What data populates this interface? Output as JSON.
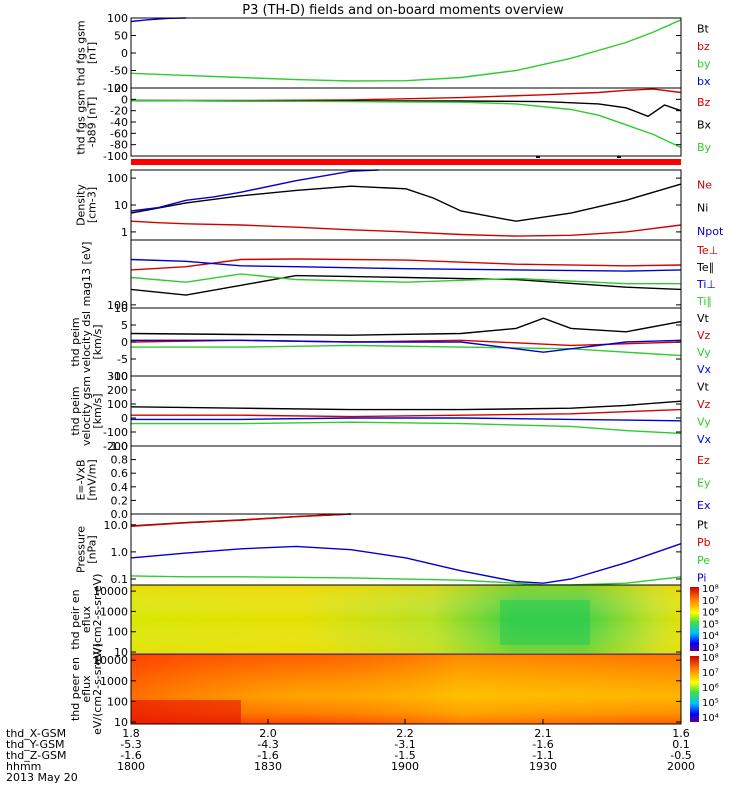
{
  "title": "P3 (TH-D) fields and on-board moments overview",
  "colors": {
    "black": "#000000",
    "red": "#d40000",
    "green": "#2ecc2e",
    "blue": "#0000d4"
  },
  "chart_data": [
    {
      "type": "line",
      "ylabel": "thd fgs gsm [nT]",
      "ylim": [
        -100,
        100
      ],
      "ticks": [
        100,
        50,
        0,
        -50,
        -100
      ],
      "tick_labels": [
        "100",
        "50",
        "0",
        "-50",
        "-100"
      ],
      "legend": [
        {
          "name": "Bt",
          "color": "black"
        },
        {
          "name": "bz",
          "color": "red"
        },
        {
          "name": "by",
          "color": "green"
        },
        {
          "name": "bx",
          "color": "blue"
        }
      ],
      "series": [
        {
          "name": "by",
          "color": "green",
          "x": [
            0,
            0.1,
            0.2,
            0.3,
            0.4,
            0.5,
            0.6,
            0.7,
            0.8,
            0.9,
            0.95,
            1.0
          ],
          "y": [
            -58,
            -64,
            -70,
            -76,
            -80,
            -79,
            -70,
            -50,
            -15,
            30,
            60,
            95
          ]
        },
        {
          "name": "bx",
          "color": "blue",
          "x": [
            0,
            0.03,
            0.07,
            0.1
          ],
          "y": [
            90,
            95,
            99,
            104
          ]
        }
      ]
    },
    {
      "type": "line",
      "ylabel": "thd fgs gsm -b89 [nT]",
      "ylim": [
        -100,
        20
      ],
      "ticks": [
        20,
        0,
        -20,
        -40,
        -60,
        -80,
        -100
      ],
      "tick_labels": [
        "20",
        "0",
        "-20",
        "-40",
        "-60",
        "-80",
        "-100"
      ],
      "legend": [
        {
          "name": "Bz",
          "color": "red"
        },
        {
          "name": "Bx",
          "color": "black"
        },
        {
          "name": "By",
          "color": "green"
        }
      ],
      "series": [
        {
          "name": "Bz",
          "color": "red",
          "x": [
            0,
            0.2,
            0.4,
            0.6,
            0.75,
            0.85,
            0.9,
            0.95,
            1.0
          ],
          "y": [
            -2,
            -2,
            -1,
            3,
            8,
            12,
            16,
            18,
            12
          ]
        },
        {
          "name": "Bx",
          "color": "black",
          "x": [
            0,
            0.2,
            0.4,
            0.6,
            0.75,
            0.85,
            0.9,
            0.94,
            0.97,
            1.0
          ],
          "y": [
            -2,
            -3,
            -3,
            -3,
            -4,
            -8,
            -15,
            -30,
            -10,
            -20
          ]
        },
        {
          "name": "By",
          "color": "green",
          "x": [
            0,
            0.2,
            0.4,
            0.6,
            0.7,
            0.8,
            0.85,
            0.9,
            0.95,
            1.0
          ],
          "y": [
            -2,
            -3,
            -4,
            -5,
            -8,
            -18,
            -28,
            -45,
            -62,
            -85
          ]
        }
      ]
    },
    {
      "type": "line",
      "ylabel": "Density [cm-3]",
      "yscale": "log",
      "ylim": [
        0.5,
        200
      ],
      "ticks": [
        100,
        10,
        1
      ],
      "tick_labels": [
        "100",
        "10",
        "1"
      ],
      "legend": [
        {
          "name": "Ne",
          "color": "red"
        },
        {
          "name": "Ni",
          "color": "black"
        },
        {
          "name": "Npot",
          "color": "blue"
        }
      ],
      "series": [
        {
          "name": "Ni",
          "color": "black",
          "x": [
            0,
            0.1,
            0.2,
            0.3,
            0.4,
            0.5,
            0.55,
            0.6,
            0.7,
            0.8,
            0.9,
            1.0
          ],
          "y": [
            5,
            12,
            22,
            35,
            50,
            40,
            18,
            6,
            2.5,
            5,
            15,
            60
          ]
        },
        {
          "name": "Npot",
          "color": "blue",
          "x": [
            0,
            0.05,
            0.1,
            0.15,
            0.2,
            0.3,
            0.4,
            0.45
          ],
          "y": [
            6,
            8,
            15,
            20,
            30,
            80,
            180,
            250
          ]
        },
        {
          "name": "Ne",
          "color": "red",
          "x": [
            0,
            0.05,
            0.1,
            0.2,
            0.3,
            0.4,
            0.5,
            0.6,
            0.7,
            0.8,
            0.9,
            1.0
          ],
          "y": [
            2.5,
            2.2,
            2.0,
            1.8,
            1.5,
            1.2,
            1.0,
            0.8,
            0.7,
            0.75,
            1.0,
            1.8
          ]
        }
      ]
    },
    {
      "type": "line",
      "ylabel": "mag13 [eV]",
      "yscale": "log",
      "ylim": [
        80,
        10000
      ],
      "ticks": [
        100
      ],
      "tick_labels": [
        "100"
      ],
      "legend": [
        {
          "name": "Te⊥",
          "color": "red"
        },
        {
          "name": "Te∥",
          "color": "black"
        },
        {
          "name": "Ti⊥",
          "color": "blue"
        },
        {
          "name": "Ti∥",
          "color": "green"
        }
      ],
      "series": [
        {
          "name": "Te⊥",
          "color": "red",
          "x": [
            0,
            0.1,
            0.2,
            0.3,
            0.5,
            0.7,
            0.9,
            1.0
          ],
          "y": [
            1200,
            1500,
            2500,
            2600,
            2400,
            1800,
            1600,
            1700
          ]
        },
        {
          "name": "Te∥",
          "color": "black",
          "x": [
            0,
            0.1,
            0.2,
            0.3,
            0.5,
            0.7,
            0.9,
            1.0
          ],
          "y": [
            300,
            200,
            400,
            800,
            700,
            600,
            350,
            300
          ]
        },
        {
          "name": "Ti⊥",
          "color": "blue",
          "x": [
            0,
            0.1,
            0.2,
            0.3,
            0.5,
            0.7,
            0.9,
            1.0
          ],
          "y": [
            2500,
            2200,
            1600,
            1500,
            1300,
            1200,
            1100,
            1200
          ]
        },
        {
          "name": "Ti∥",
          "color": "green",
          "x": [
            0,
            0.1,
            0.2,
            0.3,
            0.5,
            0.7,
            0.9,
            1.0
          ],
          "y": [
            700,
            500,
            900,
            600,
            500,
            650,
            450,
            450
          ]
        }
      ]
    },
    {
      "type": "line",
      "ylabel": "thd peim velocity dsl [km/s]",
      "ylim": [
        -10,
        10
      ],
      "ticks": [
        10,
        5,
        0,
        -5,
        -10
      ],
      "tick_labels": [
        "10",
        "5",
        "0",
        "-5",
        "-10"
      ],
      "legend": [
        {
          "name": "Vt",
          "color": "black"
        },
        {
          "name": "Vz",
          "color": "red"
        },
        {
          "name": "Vy",
          "color": "green"
        },
        {
          "name": "Vx",
          "color": "blue"
        }
      ],
      "series": [
        {
          "name": "Vt",
          "color": "black",
          "x": [
            0,
            0.2,
            0.4,
            0.6,
            0.7,
            0.75,
            0.8,
            0.9,
            1.0
          ],
          "y": [
            2.5,
            2.2,
            2.0,
            2.5,
            4,
            7,
            4,
            3,
            6
          ]
        },
        {
          "name": "Vz",
          "color": "red",
          "x": [
            0,
            0.2,
            0.4,
            0.6,
            0.8,
            1.0
          ],
          "y": [
            0,
            0.5,
            0,
            0.5,
            -1,
            0
          ]
        },
        {
          "name": "Vy",
          "color": "green",
          "x": [
            0,
            0.2,
            0.4,
            0.6,
            0.8,
            0.9,
            1.0
          ],
          "y": [
            -1.5,
            -1.5,
            -1,
            -1.5,
            -2,
            -3,
            -4
          ]
        },
        {
          "name": "Vx",
          "color": "blue",
          "x": [
            0,
            0.2,
            0.4,
            0.6,
            0.75,
            0.8,
            0.9,
            1.0
          ],
          "y": [
            0.5,
            0.5,
            0,
            0,
            -3,
            -2,
            0,
            0.5
          ]
        }
      ]
    },
    {
      "type": "line",
      "ylabel": "thd peim velocity gsm [km/s]",
      "ylim": [
        -200,
        300
      ],
      "ticks": [
        300,
        200,
        100,
        0,
        -100,
        -200
      ],
      "tick_labels": [
        "300",
        "200",
        "100",
        "0",
        "-100",
        "-200"
      ],
      "legend": [
        {
          "name": "Vt",
          "color": "black"
        },
        {
          "name": "Vz",
          "color": "red"
        },
        {
          "name": "Vy",
          "color": "green"
        },
        {
          "name": "Vx",
          "color": "blue"
        }
      ],
      "series": [
        {
          "name": "Vt",
          "color": "black",
          "x": [
            0,
            0.2,
            0.4,
            0.6,
            0.8,
            0.9,
            1.0
          ],
          "y": [
            80,
            70,
            60,
            60,
            70,
            90,
            120
          ]
        },
        {
          "name": "Vz",
          "color": "red",
          "x": [
            0,
            0.2,
            0.4,
            0.6,
            0.8,
            1.0
          ],
          "y": [
            20,
            20,
            10,
            20,
            30,
            60
          ]
        },
        {
          "name": "Vy",
          "color": "green",
          "x": [
            0,
            0.2,
            0.4,
            0.6,
            0.8,
            0.9,
            1.0
          ],
          "y": [
            -40,
            -40,
            -30,
            -40,
            -60,
            -90,
            -110
          ]
        },
        {
          "name": "Vx",
          "color": "blue",
          "x": [
            0,
            0.2,
            0.4,
            0.6,
            0.8,
            1.0
          ],
          "y": [
            -10,
            -10,
            0,
            0,
            -10,
            -20
          ]
        }
      ]
    },
    {
      "type": "line",
      "ylabel": "E=-VxB [mV/m]",
      "ylim": [
        0,
        1
      ],
      "ticks": [
        1.0,
        0.8,
        0.6,
        0.4,
        0.2,
        0.0
      ],
      "tick_labels": [
        "1.0",
        "0.8",
        "0.6",
        "0.4",
        "0.2",
        "0.0"
      ],
      "legend": [
        {
          "name": "Ez",
          "color": "red"
        },
        {
          "name": "Ey",
          "color": "green"
        },
        {
          "name": "Ex",
          "color": "blue"
        }
      ],
      "series": []
    },
    {
      "type": "line",
      "ylabel": "Pressure [nPa]",
      "yscale": "log",
      "ylim": [
        0.06,
        25
      ],
      "ticks": [
        10,
        1.0,
        0.1
      ],
      "tick_labels": [
        "10.0",
        "1.0",
        "0.1"
      ],
      "legend": [
        {
          "name": "Pt",
          "color": "black"
        },
        {
          "name": "Pb",
          "color": "red"
        },
        {
          "name": "Pe",
          "color": "green"
        },
        {
          "name": "Pi",
          "color": "blue"
        }
      ],
      "series": [
        {
          "name": "Pt",
          "color": "black",
          "x": [
            0,
            0.1,
            0.2,
            0.3,
            0.4
          ],
          "y": [
            9,
            12,
            15,
            20,
            26
          ]
        },
        {
          "name": "Pb",
          "color": "red",
          "x": [
            0,
            0.1,
            0.2,
            0.3,
            0.4
          ],
          "y": [
            8.8,
            11.8,
            14.8,
            19.8,
            25.5
          ]
        },
        {
          "name": "Pi",
          "color": "blue",
          "x": [
            0,
            0.1,
            0.2,
            0.3,
            0.4,
            0.5,
            0.6,
            0.7,
            0.75,
            0.8,
            0.9,
            1.0
          ],
          "y": [
            0.6,
            0.9,
            1.3,
            1.6,
            1.2,
            0.6,
            0.2,
            0.08,
            0.07,
            0.1,
            0.4,
            2
          ]
        },
        {
          "name": "Pe",
          "color": "green",
          "x": [
            0,
            0.1,
            0.2,
            0.4,
            0.6,
            0.7,
            0.75,
            0.8,
            0.9,
            1.0
          ],
          "y": [
            0.13,
            0.12,
            0.12,
            0.11,
            0.09,
            0.07,
            0.06,
            0.06,
            0.07,
            0.12
          ]
        }
      ]
    },
    {
      "type": "heatmap",
      "ylabel": "thd peir en eflux eV/(cm2-s-sr-eV)",
      "ticks": [
        10000,
        1000,
        100,
        10
      ],
      "tick_labels": [
        "10000",
        "1000",
        "100",
        "10"
      ],
      "colorbar": [
        "10⁸",
        "10⁷",
        "10⁶",
        "10⁵",
        "10⁴",
        "10³"
      ]
    },
    {
      "type": "heatmap",
      "ylabel": "thd peer en eflux eV/(cm2-s-sr-eV)",
      "ticks": [
        10000,
        1000,
        100,
        10
      ],
      "tick_labels": [
        "10000",
        "1000",
        "100",
        "10"
      ],
      "colorbar": [
        "10⁸",
        "10⁷",
        "10⁶",
        "10⁵",
        "10⁴"
      ]
    }
  ],
  "xaxis": {
    "rows": [
      {
        "label": "thd_X-GSM",
        "values": [
          "1.8",
          "2.0",
          "2.2",
          "2.1",
          "1.6"
        ]
      },
      {
        "label": "thd_Y-GSM",
        "values": [
          "-5.3",
          "-4.3",
          "-3.1",
          "-1.6",
          "0.1"
        ]
      },
      {
        "label": "thd_Z-GSM",
        "values": [
          "-1.6",
          "-1.6",
          "-1.5",
          "-1.1",
          "-0.5"
        ]
      },
      {
        "label": "hhmm",
        "values": [
          "1800",
          "1830",
          "1900",
          "1930",
          "2000"
        ]
      }
    ],
    "date": "2013 May 20"
  }
}
